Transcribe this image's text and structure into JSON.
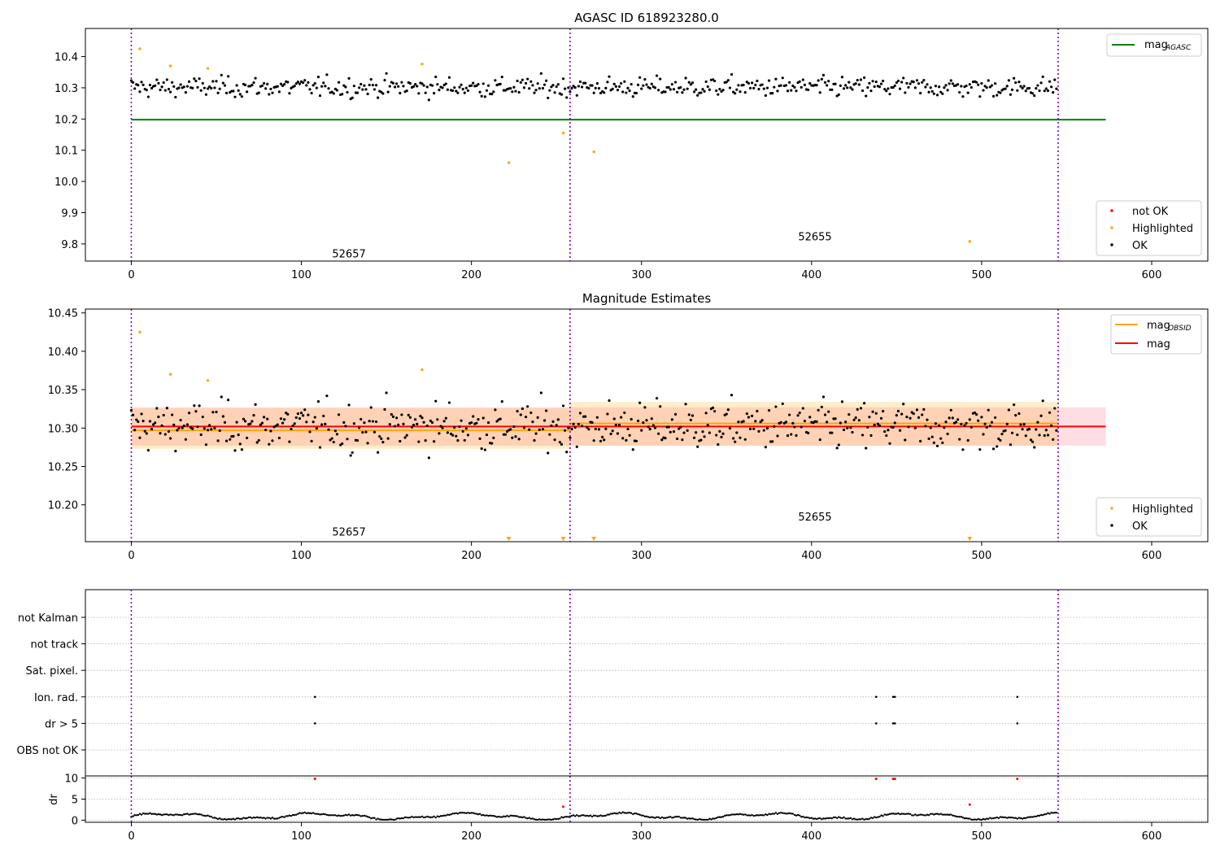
{
  "figure": {
    "panels": [
      "AGASC ID 618923280.0",
      "Magnitude Estimates",
      ""
    ]
  },
  "chart_data": [
    {
      "type": "scatter",
      "title": "AGASC ID 618923280.0",
      "xlabel": "",
      "ylabel": "",
      "xlim": [
        -27,
        633
      ],
      "ylim": [
        9.745,
        10.49
      ],
      "xticks": [
        0,
        100,
        200,
        300,
        400,
        500,
        600
      ],
      "yticks": [
        9.8,
        9.9,
        10.0,
        10.1,
        10.2,
        10.3,
        10.4
      ],
      "reference_lines": [
        {
          "name": "mag_AGASC",
          "y": 10.198,
          "x_range": [
            0,
            573
          ],
          "color": "#008000"
        }
      ],
      "obsid_boundaries": [
        0,
        258,
        545
      ],
      "obsid_labels": [
        {
          "text": "52657",
          "x": 128,
          "y": 9.77
        },
        {
          "text": "52655",
          "x": 402,
          "y": 9.825
        }
      ],
      "highlighted_points": [
        [
          5,
          10.425
        ],
        [
          23,
          10.37
        ],
        [
          45,
          10.362
        ],
        [
          171,
          10.376
        ],
        [
          222,
          10.06
        ],
        [
          254,
          10.155
        ],
        [
          272,
          10.095
        ],
        [
          493,
          9.808
        ]
      ],
      "ok_series": {
        "name": "OK",
        "n_points": 545,
        "mean": 10.302,
        "spread": 0.025
      },
      "legend_lines": {
        "entries": [
          "mag",
          "AGASC"
        ],
        "position": "top-right"
      },
      "legend_points": {
        "entries": [
          "not OK",
          "Highlighted",
          "OK"
        ],
        "colors": [
          "#ff0000",
          "#ffa500",
          "#000000"
        ],
        "position": "bottom-right"
      }
    },
    {
      "type": "scatter",
      "title": "Magnitude Estimates",
      "xlabel": "",
      "ylabel": "",
      "xlim": [
        -27,
        633
      ],
      "ylim": [
        10.152,
        10.455
      ],
      "xticks": [
        0,
        100,
        200,
        300,
        400,
        500,
        600
      ],
      "yticks": [
        10.2,
        10.25,
        10.3,
        10.35,
        10.4,
        10.45
      ],
      "mag": {
        "name": "mag",
        "y": 10.302,
        "band": [
          10.277,
          10.327
        ],
        "x_range": [
          0,
          573
        ],
        "color": "#ff0000"
      },
      "mag_obsid": [
        {
          "name": "mag_OBSID",
          "x_range": [
            0,
            258
          ],
          "y": 10.297,
          "band": [
            10.273,
            10.326
          ]
        },
        {
          "name": "mag_OBSID",
          "x_range": [
            258,
            545
          ],
          "y": 10.306,
          "band": [
            10.277,
            10.334
          ]
        }
      ],
      "obsid_boundaries": [
        0,
        258,
        545
      ],
      "obsid_labels": [
        {
          "text": "52657",
          "x": 128,
          "y": 10.165
        },
        {
          "text": "52655",
          "x": 402,
          "y": 10.185
        }
      ],
      "highlighted_points": [
        [
          5,
          10.425
        ],
        [
          23,
          10.37
        ],
        [
          45,
          10.362
        ],
        [
          171,
          10.376
        ]
      ],
      "below_axis_markers": [
        222,
        254,
        272,
        493
      ],
      "legend_lines": {
        "entries": [
          "mag",
          "OBSID",
          "mag"
        ],
        "position": "top-right"
      },
      "legend_points": {
        "entries": [
          "Highlighted",
          "OK"
        ],
        "colors": [
          "#ffa500",
          "#000000"
        ],
        "position": "bottom-right"
      }
    },
    {
      "type": "scatter",
      "title": "",
      "xlim": [
        -27,
        633
      ],
      "xticks": [
        0,
        100,
        200,
        300,
        400,
        500,
        600
      ],
      "flag_categories": [
        "not Kalman",
        "not track",
        "Sat. pixel.",
        "Ion. rad.",
        "dr > 5",
        "OBS not OK"
      ],
      "flag_points": {
        "Ion. rad.": [
          108,
          438,
          448,
          449,
          521
        ],
        "dr > 5": [
          108,
          438,
          448,
          449,
          521
        ]
      },
      "obsid_boundaries": [
        0,
        258,
        545
      ]
    },
    {
      "type": "scatter",
      "title": "",
      "ylabel": "dr",
      "xlim": [
        -27,
        633
      ],
      "ylim": [
        -0.5,
        10.5
      ],
      "xticks": [
        0,
        100,
        200,
        300,
        400,
        500,
        600
      ],
      "yticks": [
        0,
        5,
        10
      ],
      "red_points": [
        [
          108,
          9.8
        ],
        [
          438,
          9.8
        ],
        [
          448,
          9.8
        ],
        [
          449,
          9.8
        ],
        [
          521,
          9.8
        ],
        [
          254,
          3.2
        ],
        [
          493,
          3.7
        ]
      ],
      "obsid_boundaries": [
        0,
        258,
        545
      ]
    }
  ]
}
